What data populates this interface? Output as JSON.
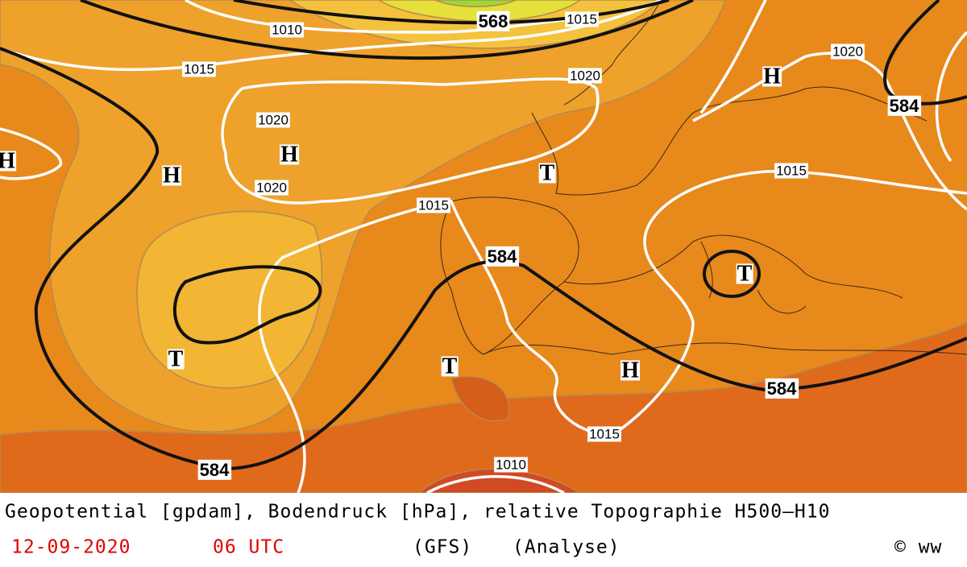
{
  "map": {
    "contour_labels": [
      "568",
      "1015",
      "1010",
      "1015",
      "1020",
      "1020",
      "584",
      "1020",
      "1020",
      "1015",
      "1015",
      "584",
      "584",
      "1015",
      "1010",
      "584"
    ],
    "centers": [
      "H",
      "H",
      "H",
      "T",
      "H",
      "T",
      "T",
      "T",
      "H"
    ]
  },
  "caption": {
    "line1": "Geopotential [gpdam], Bodendruck [hPa], relative Topographie H500—H10",
    "date": "12-09-2020",
    "time": "06 UTC",
    "model": "(GFS)",
    "run": "(Analyse)",
    "copyright": "© ww"
  }
}
